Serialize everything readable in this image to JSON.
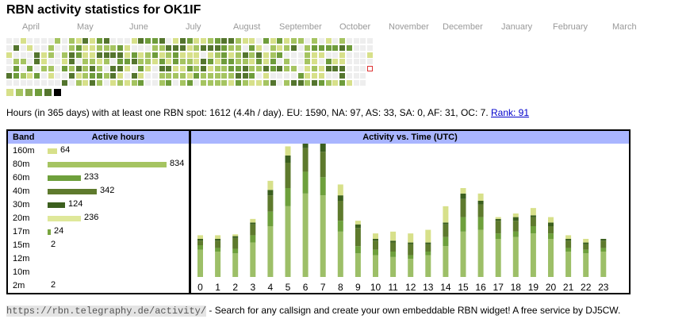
{
  "title": "RBN activity statistics for OK1IF",
  "months": [
    "April",
    "May",
    "June",
    "July",
    "August",
    "September",
    "October",
    "November",
    "December",
    "January",
    "February",
    "March"
  ],
  "heatmap": {
    "colors": {
      "empty": "#eeeeee",
      "l1": "#d7e08a",
      "l2": "#a5c461",
      "l3": "#6e9c3b",
      "l4": "#54752e",
      "l5": "#333333",
      "today_border": "#dd3333"
    },
    "legend": [
      "#d7e08a",
      "#a5c461",
      "#8aaa4f",
      "#6e9c3b",
      "#54752e",
      "#000000"
    ]
  },
  "summary": {
    "text": "Hours (in 365 days) with at least one RBN spot: 1612 (4.4h / day). EU: 1590, NA: 97, AS: 33, SA: 0, AF: 31, OC: 7.",
    "rank_label": "Rank: 91"
  },
  "band_table": {
    "header_band": "Band",
    "header_hours": "Active hours",
    "rows": [
      {
        "band": "160m",
        "hours": "64",
        "value": 64,
        "color": "#d7e08a"
      },
      {
        "band": "80m",
        "hours": "834",
        "value": 834,
        "color": "#a5c461"
      },
      {
        "band": "60m",
        "hours": "233",
        "value": 233,
        "color": "#6ea03c"
      },
      {
        "band": "40m",
        "hours": "342",
        "value": 342,
        "color": "#5e7a2d"
      },
      {
        "band": "30m",
        "hours": "124",
        "value": 124,
        "color": "#3b5f1e"
      },
      {
        "band": "20m",
        "hours": "236",
        "value": 236,
        "color": "#dfe89a"
      },
      {
        "band": "17m",
        "hours": "24",
        "value": 24,
        "color": "#79a53f"
      },
      {
        "band": "15m",
        "hours": "2",
        "value": 2,
        "color": "#a5c461"
      },
      {
        "band": "12m",
        "hours": "",
        "value": 0,
        "color": "#a5c461"
      },
      {
        "band": "10m",
        "hours": "",
        "value": 0,
        "color": "#a5c461"
      },
      {
        "band": "2m",
        "hours": "2",
        "value": 2,
        "color": "#a5c461"
      }
    ]
  },
  "chart_data": {
    "type": "bar",
    "title": "Activity vs. Time (UTC)",
    "xlabel": "",
    "ylabel": "",
    "categories": [
      "0",
      "1",
      "2",
      "3",
      "4",
      "5",
      "6",
      "7",
      "8",
      "9",
      "10",
      "11",
      "12",
      "13",
      "14",
      "15",
      "16",
      "17",
      "18",
      "19",
      "20",
      "21",
      "22",
      "23"
    ],
    "series": [
      {
        "name": "80m",
        "color": "#9dbf68",
        "values": [
          30,
          28,
          26,
          38,
          56,
          78,
          92,
          90,
          50,
          26,
          24,
          22,
          20,
          24,
          34,
          50,
          52,
          42,
          44,
          48,
          42,
          28,
          26,
          28
        ]
      },
      {
        "name": "60m",
        "color": "#6ea03c",
        "values": [
          5,
          4,
          5,
          8,
          16,
          20,
          24,
          20,
          12,
          8,
          6,
          6,
          4,
          4,
          10,
          16,
          14,
          6,
          6,
          8,
          6,
          4,
          4,
          4
        ]
      },
      {
        "name": "40m",
        "color": "#5e7a2d",
        "values": [
          5,
          8,
          12,
          12,
          18,
          28,
          26,
          28,
          22,
          20,
          10,
          10,
          12,
          8,
          14,
          20,
          14,
          14,
          12,
          10,
          8,
          8,
          6,
          8
        ]
      },
      {
        "name": "30m",
        "color": "#3b5f1e",
        "values": [
          2,
          2,
          2,
          2,
          6,
          8,
          8,
          10,
          6,
          4,
          2,
          2,
          2,
          2,
          2,
          6,
          4,
          2,
          4,
          2,
          4,
          2,
          2,
          2
        ]
      },
      {
        "name": "160m",
        "color": "#d7e08a",
        "values": [
          4,
          4,
          2,
          4,
          10,
          10,
          10,
          12,
          12,
          4,
          6,
          10,
          10,
          14,
          18,
          6,
          8,
          2,
          4,
          8,
          6,
          4,
          4,
          0
        ]
      },
      {
        "name": "17m",
        "color": "#79a53f",
        "values": [
          0,
          0,
          0,
          0,
          0,
          0,
          0,
          0,
          0,
          0,
          0,
          0,
          0,
          0,
          0,
          0,
          0,
          0,
          0,
          0,
          0,
          0,
          0,
          0
        ]
      }
    ],
    "ylim": [
      0,
      140
    ]
  },
  "footer": {
    "url": "https://rbn.telegraphy.de/activity/",
    "text": " - Search for any callsign and create your own embeddable RBN widget! A free service by DJ5CW."
  }
}
